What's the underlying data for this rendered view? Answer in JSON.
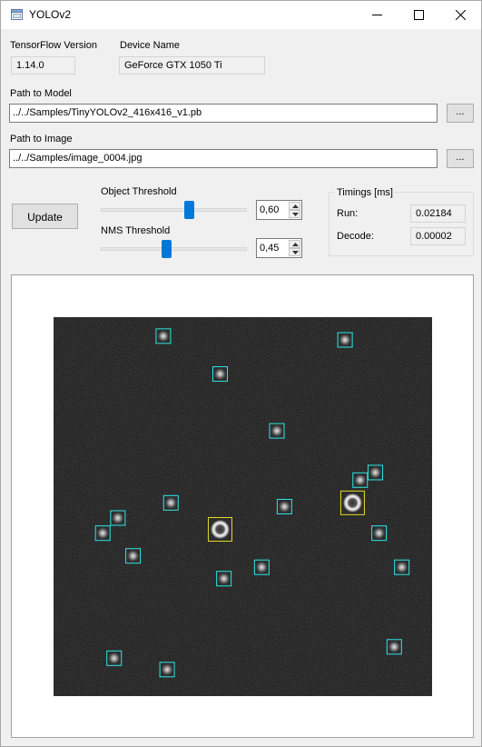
{
  "window": {
    "title": "YOLOv2",
    "icon": "window-app-icon",
    "controls": [
      "minimize-icon",
      "maximize-icon",
      "close-icon"
    ]
  },
  "info": {
    "tf_version_label": "TensorFlow Version",
    "tf_version_value": "1.14.0",
    "device_label": "Device Name",
    "device_value": "GeForce GTX 1050 Ti"
  },
  "model": {
    "label": "Path to Model",
    "path": "../../Samples/TinyYOLOv2_416x416_v1.pb",
    "browse_label": "..."
  },
  "image": {
    "label": "Path to Image",
    "path": "../../Samples/image_0004.jpg",
    "browse_label": "..."
  },
  "controls": {
    "update_label": "Update",
    "object_threshold": {
      "label": "Object Threshold",
      "value": "0,60",
      "fraction": 0.6
    },
    "nms_threshold": {
      "label": "NMS Threshold",
      "value": "0,45",
      "fraction": 0.45
    }
  },
  "timings": {
    "title": "Timings [ms]",
    "run_label": "Run:",
    "run_value": "0.02184",
    "decode_label": "Decode:",
    "decode_value": "0.00002"
  },
  "detections": {
    "colors": {
      "background": "#1e1e1e",
      "small_box": "#2ee6e6",
      "large_box": "#e6d92e"
    },
    "small": [
      [
        0.29,
        0.05
      ],
      [
        0.77,
        0.06
      ],
      [
        0.44,
        0.15
      ],
      [
        0.59,
        0.3
      ],
      [
        0.85,
        0.41
      ],
      [
        0.81,
        0.43
      ],
      [
        0.31,
        0.49
      ],
      [
        0.61,
        0.5
      ],
      [
        0.17,
        0.53
      ],
      [
        0.13,
        0.57
      ],
      [
        0.21,
        0.63
      ],
      [
        0.86,
        0.57
      ],
      [
        0.92,
        0.66
      ],
      [
        0.55,
        0.66
      ],
      [
        0.45,
        0.69
      ],
      [
        0.16,
        0.9
      ],
      [
        0.3,
        0.93
      ],
      [
        0.9,
        0.87
      ]
    ],
    "large": [
      [
        0.44,
        0.56
      ],
      [
        0.79,
        0.49
      ]
    ]
  }
}
